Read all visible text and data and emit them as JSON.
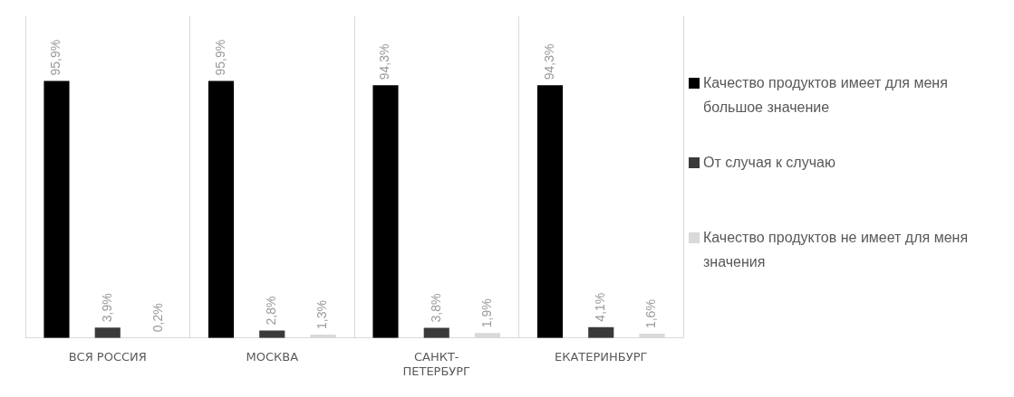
{
  "chart_data": {
    "type": "bar",
    "categories": [
      "ВСЯ РОССИЯ",
      "МОСКВА",
      "САНКТ-ПЕТЕРБУРГ",
      "ЕКАТЕРИНБУРГ"
    ],
    "series": [
      {
        "name": "Качество продуктов имеет для меня большое значение",
        "color": "#000000",
        "values": [
          95.9,
          95.9,
          94.3,
          94.3
        ],
        "value_labels": [
          "95,9%",
          "95,9%",
          "94,3%",
          "94,3%"
        ]
      },
      {
        "name": "От случая к случаю",
        "color": "#3a3a3a",
        "values": [
          3.9,
          2.8,
          3.8,
          4.1
        ],
        "value_labels": [
          "3,9%",
          "2,8%",
          "3,8%",
          "4,1%"
        ]
      },
      {
        "name": "Качество продуктов не имеет для меня значения",
        "color": "#d9d9d9",
        "values": [
          0.2,
          1.3,
          1.9,
          1.6
        ],
        "value_labels": [
          "0,2%",
          "1,3%",
          "1,9%",
          "1,6%"
        ]
      }
    ],
    "ylim": [
      0,
      120
    ],
    "tick_labels": "x",
    "grid": "x",
    "legend": "right"
  }
}
